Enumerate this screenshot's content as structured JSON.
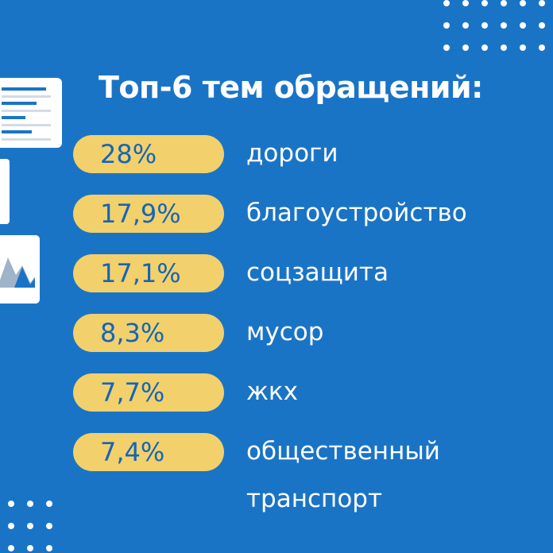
{
  "title": "Топ-6 тем обращений:",
  "items": [
    {
      "percent": "28%",
      "topic": "дороги",
      "topic_line2": ""
    },
    {
      "percent": "17,9%",
      "topic": "благоустройство",
      "topic_line2": ""
    },
    {
      "percent": "17,1%",
      "topic": "соцзащита",
      "topic_line2": ""
    },
    {
      "percent": "8,3%",
      "topic": "мусор",
      "topic_line2": ""
    },
    {
      "percent": "7,7%",
      "topic": "жкх",
      "topic_line2": ""
    },
    {
      "percent": "7,4%",
      "topic": "общественный",
      "topic_line2": "транспорт"
    }
  ],
  "colors": {
    "background": "#1a74c6",
    "pill": "#f2d06b",
    "percent_text": "#1565b8",
    "text": "#ffffff"
  },
  "icons": [
    "document-icon",
    "chart-card-icon",
    "card-icon"
  ]
}
